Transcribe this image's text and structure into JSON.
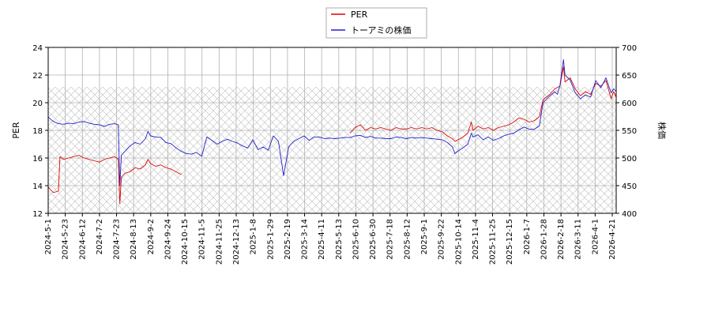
{
  "chart_data": {
    "type": "line",
    "left_axis": {
      "label": "PER",
      "ylim": [
        12,
        24
      ],
      "ticks": [
        "12",
        "14",
        "16",
        "18",
        "20",
        "22",
        "24"
      ]
    },
    "right_axis": {
      "label": "株価",
      "ylim": [
        400,
        700
      ],
      "ticks": [
        "400",
        "450",
        "500",
        "550",
        "600",
        "650",
        "700"
      ]
    },
    "x_tick_labels": [
      "2024-5-1",
      "2024-5-23",
      "2024-6-12",
      "2024-7-2",
      "2024-7-23",
      "2024-8-13",
      "2024-9-2",
      "2024-9-24",
      "2024-10-15",
      "2024-11-5",
      "2024-11-25",
      "2024-12-13",
      "2025-1-8",
      "2025-1-29",
      "2025-2-19",
      "2025-3-14",
      "2025-4-11",
      "2025-5-13",
      "2025-6-10",
      "2025-6-30",
      "2025-7-18",
      "2025-8-12",
      "2025-9-1",
      "2025-9-22",
      "2025-10-14",
      "2025-11-4",
      "2025-11-25",
      "2025-12-15",
      "2026-1-7",
      "2026-1-28",
      "2026-2-18",
      "2026-3-11",
      "2026-4-1",
      "2026-4-21"
    ],
    "grid": true,
    "legend_position": "top-center",
    "series": [
      {
        "name": "PER",
        "color": "#dd0000",
        "axis": "left",
        "points": [
          [
            0,
            13.9
          ],
          [
            1,
            13.5
          ],
          [
            2,
            13.6
          ],
          [
            2.3,
            16.1
          ],
          [
            3,
            15.9
          ],
          [
            4,
            16.0
          ],
          [
            5,
            16.1
          ],
          [
            6,
            16.2
          ],
          [
            7,
            16.0
          ],
          [
            8,
            15.9
          ],
          [
            9,
            15.8
          ],
          [
            10,
            15.7
          ],
          [
            11,
            15.9
          ],
          [
            12,
            16.0
          ],
          [
            13,
            16.1
          ],
          [
            13.7,
            15.9
          ],
          [
            14,
            12.7
          ],
          [
            14.3,
            14.6
          ],
          [
            15,
            14.9
          ],
          [
            16,
            15.0
          ],
          [
            17,
            15.3
          ],
          [
            18,
            15.2
          ],
          [
            19,
            15.5
          ],
          [
            19.5,
            15.9
          ],
          [
            20,
            15.6
          ],
          [
            21,
            15.4
          ],
          [
            22,
            15.5
          ],
          [
            23,
            15.3
          ],
          [
            24,
            15.2
          ],
          [
            25,
            15.0
          ],
          [
            26,
            14.8
          ],
          [
            59,
            17.8
          ],
          [
            60,
            18.2
          ],
          [
            61,
            18.4
          ],
          [
            62,
            18.0
          ],
          [
            63,
            18.2
          ],
          [
            64,
            18.1
          ],
          [
            65,
            18.2
          ],
          [
            66,
            18.1
          ],
          [
            67,
            18.0
          ],
          [
            68,
            18.2
          ],
          [
            69,
            18.1
          ],
          [
            70,
            18.1
          ],
          [
            71,
            18.2
          ],
          [
            72,
            18.1
          ],
          [
            73,
            18.2
          ],
          [
            74,
            18.1
          ],
          [
            75,
            18.2
          ],
          [
            76,
            18.0
          ],
          [
            77,
            17.9
          ],
          [
            78,
            17.6
          ],
          [
            79,
            17.4
          ],
          [
            79.5,
            17.2
          ],
          [
            80,
            17.3
          ],
          [
            81,
            17.5
          ],
          [
            82,
            17.8
          ],
          [
            82.7,
            18.6
          ],
          [
            83,
            18.0
          ],
          [
            84,
            18.3
          ],
          [
            85,
            18.1
          ],
          [
            86,
            18.2
          ],
          [
            87,
            18.0
          ],
          [
            88,
            18.2
          ],
          [
            89,
            18.3
          ],
          [
            90,
            18.4
          ],
          [
            91,
            18.6
          ],
          [
            92,
            18.9
          ],
          [
            93,
            18.8
          ],
          [
            94,
            18.6
          ],
          [
            95,
            18.7
          ],
          [
            96,
            19.0
          ],
          [
            96.7,
            20.2
          ],
          [
            97,
            20.3
          ],
          [
            98,
            20.6
          ],
          [
            99,
            21.0
          ],
          [
            100,
            21.2
          ],
          [
            100.7,
            22.6
          ],
          [
            101,
            21.5
          ],
          [
            102,
            21.8
          ],
          [
            103,
            21.0
          ],
          [
            104,
            20.5
          ],
          [
            105,
            20.8
          ],
          [
            106,
            20.6
          ],
          [
            107,
            21.4
          ],
          [
            108,
            21.2
          ],
          [
            109,
            21.6
          ],
          [
            110,
            20.3
          ],
          [
            110.5,
            20.8
          ],
          [
            111,
            20.4
          ]
        ]
      },
      {
        "name": "トーアミの株価",
        "color": "#2222cc",
        "axis": "right",
        "points": [
          [
            0,
            574
          ],
          [
            1,
            566
          ],
          [
            2,
            562
          ],
          [
            3,
            561
          ],
          [
            4,
            563
          ],
          [
            5,
            562
          ],
          [
            6,
            565
          ],
          [
            7,
            566
          ],
          [
            8,
            563
          ],
          [
            9,
            561
          ],
          [
            10,
            560
          ],
          [
            11,
            557
          ],
          [
            12,
            561
          ],
          [
            13,
            562
          ],
          [
            13.7,
            560
          ],
          [
            14,
            450
          ],
          [
            14.3,
            505
          ],
          [
            15,
            512
          ],
          [
            16,
            522
          ],
          [
            17,
            528
          ],
          [
            18,
            525
          ],
          [
            19,
            535
          ],
          [
            19.5,
            548
          ],
          [
            20,
            540
          ],
          [
            21,
            538
          ],
          [
            22,
            537
          ],
          [
            23,
            528
          ],
          [
            24,
            526
          ],
          [
            25,
            518
          ],
          [
            26,
            512
          ],
          [
            27,
            508
          ],
          [
            28,
            507
          ],
          [
            29,
            510
          ],
          [
            30,
            503
          ],
          [
            31,
            538
          ],
          [
            32,
            532
          ],
          [
            33,
            525
          ],
          [
            34,
            530
          ],
          [
            35,
            534
          ],
          [
            36,
            530
          ],
          [
            37,
            527
          ],
          [
            38,
            522
          ],
          [
            39,
            518
          ],
          [
            40,
            533
          ],
          [
            41,
            515
          ],
          [
            42,
            520
          ],
          [
            43,
            514
          ],
          [
            44,
            540
          ],
          [
            45,
            530
          ],
          [
            46,
            468
          ],
          [
            47,
            520
          ],
          [
            48,
            530
          ],
          [
            49,
            535
          ],
          [
            50,
            540
          ],
          [
            51,
            532
          ],
          [
            52,
            538
          ],
          [
            53,
            538
          ],
          [
            54,
            535
          ],
          [
            55,
            536
          ],
          [
            56,
            535
          ],
          [
            57,
            536
          ],
          [
            58,
            537
          ],
          [
            59,
            537
          ],
          [
            60,
            540
          ],
          [
            61,
            541
          ],
          [
            62,
            537
          ],
          [
            63,
            539
          ],
          [
            64,
            536
          ],
          [
            65,
            536
          ],
          [
            66,
            535
          ],
          [
            67,
            535
          ],
          [
            68,
            538
          ],
          [
            69,
            537
          ],
          [
            70,
            535
          ],
          [
            71,
            537
          ],
          [
            72,
            536
          ],
          [
            73,
            537
          ],
          [
            74,
            536
          ],
          [
            75,
            535
          ],
          [
            76,
            534
          ],
          [
            77,
            533
          ],
          [
            78,
            528
          ],
          [
            79,
            520
          ],
          [
            79.5,
            508
          ],
          [
            80,
            512
          ],
          [
            81,
            518
          ],
          [
            82,
            525
          ],
          [
            82.7,
            545
          ],
          [
            83,
            538
          ],
          [
            84,
            542
          ],
          [
            85,
            533
          ],
          [
            86,
            538
          ],
          [
            87,
            532
          ],
          [
            88,
            535
          ],
          [
            89,
            540
          ],
          [
            90,
            543
          ],
          [
            91,
            545
          ],
          [
            92,
            551
          ],
          [
            93,
            556
          ],
          [
            94,
            552
          ],
          [
            95,
            552
          ],
          [
            96,
            558
          ],
          [
            96.7,
            600
          ],
          [
            97,
            603
          ],
          [
            98,
            612
          ],
          [
            99,
            620
          ],
          [
            99.5,
            615
          ],
          [
            100,
            631
          ],
          [
            100.7,
            678
          ],
          [
            101,
            650
          ],
          [
            102,
            641
          ],
          [
            103,
            618
          ],
          [
            104,
            607
          ],
          [
            105,
            614
          ],
          [
            106,
            610
          ],
          [
            107,
            640
          ],
          [
            108,
            627
          ],
          [
            109,
            645
          ],
          [
            110,
            618
          ],
          [
            110.5,
            625
          ],
          [
            111,
            620
          ]
        ]
      }
    ]
  }
}
